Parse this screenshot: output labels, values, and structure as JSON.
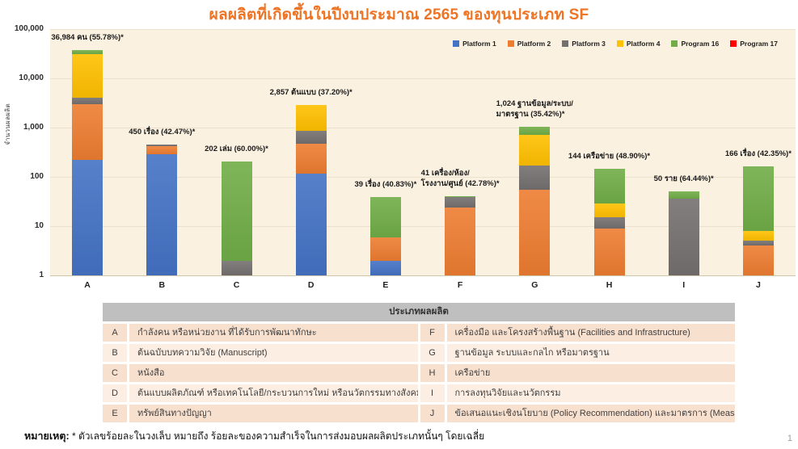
{
  "title": "ผลผลิตที่เกิดขึ้นในปีงบประมาณ 2565 ของทุนประเภท SF",
  "page_number": "1",
  "footnote": {
    "label": "หมายเหตุ:",
    "text": "* ตัวเลขร้อยละในวงเล็บ หมายถึง ร้อยละของความสำเร็จในการส่งมอบผลผลิตประเภทนั้นๆ โดยเฉลี่ย"
  },
  "colors": {
    "title": "#EE7425",
    "plot_bg": "#FAF1E0",
    "gridline": "#EAE0CB",
    "table_header_bg": "#BFBFBF",
    "row_dark": "#F8E0CF",
    "row_light": "#FCEEE3"
  },
  "chart_data": {
    "type": "bar",
    "stacked": true,
    "title": "ผลผลิตที่เกิดขึ้นในปีงบประมาณ 2565 ของทุนประเภท SF",
    "xlabel": "",
    "ylabel": "จำนวนผลผลิต",
    "y_scale": "log",
    "ylim": [
      1,
      100000
    ],
    "yticks": [
      "100,000",
      "10,000",
      "1,000",
      "100",
      "10",
      "1"
    ],
    "grid": true,
    "legend_position": "top-right",
    "categories": [
      "A",
      "B",
      "C",
      "D",
      "E",
      "F",
      "G",
      "H",
      "I",
      "J"
    ],
    "totals": [
      36984,
      450,
      202,
      2857,
      39,
      41,
      1024,
      144,
      50,
      166
    ],
    "series": [
      {
        "name": "Platform 1",
        "color": "#4472C4",
        "values": [
          225,
          290,
          0,
          116,
          2,
          0,
          0,
          0,
          0,
          0
        ]
      },
      {
        "name": "Platform 2",
        "color": "#ED7D31",
        "values": [
          2775,
          130,
          0,
          349,
          4,
          24,
          55,
          9,
          0,
          4
        ]
      },
      {
        "name": "Platform 3",
        "color": "#757070",
        "values": [
          1100,
          30,
          2,
          405,
          0,
          15,
          115,
          6,
          36,
          1
        ]
      },
      {
        "name": "Platform 4",
        "color": "#FFC000",
        "values": [
          26900,
          0,
          0,
          1987,
          0,
          0,
          550,
          14,
          0,
          3
        ]
      },
      {
        "name": "Program 16",
        "color": "#70AD47",
        "values": [
          5984,
          0,
          200,
          0,
          33,
          2,
          304,
          115,
          14,
          158
        ]
      },
      {
        "name": "Program 17",
        "color": "#FF0000",
        "values": [
          0,
          0,
          0,
          0,
          0,
          0,
          0,
          0,
          0,
          0
        ]
      }
    ],
    "bar_labels": [
      [
        "36,984 คน (55.78%)*"
      ],
      [
        "450 เรื่อง (42.47%)*"
      ],
      [
        "202 เล่ม (60.00%)*"
      ],
      [
        "2,857 ต้นแบบ (37.20%)*"
      ],
      [
        "39 เรื่อง (40.83%)*"
      ],
      [
        "41 เครื่อง/ห้อง/",
        "โรงงาน/ศูนย์ (42.78%)*"
      ],
      [
        "1,024 ฐานข้อมูล/ระบบ/",
        "มาตรฐาน (35.42%)*"
      ],
      [
        "144 เครือข่าย (48.90%)*"
      ],
      [
        "50 ราย (64.44%)*"
      ],
      [
        "166 เรื่อง (42.35%)*"
      ]
    ]
  },
  "table": {
    "header": "ประเภทผลผลิต",
    "left_rows": [
      {
        "key": "A",
        "label": "กำลังคน หรือหน่วยงาน ที่ได้รับการพัฒนาทักษะ"
      },
      {
        "key": "B",
        "label": "ต้นฉบับบทความวิจัย  (Manuscript)"
      },
      {
        "key": "C",
        "label": "หนังสือ"
      },
      {
        "key": "D",
        "label": "ต้นแบบผลิตภัณฑ์ หรือเทคโนโลยี/กระบวนการใหม่ หรือนวัตกรรมทางสังคม"
      },
      {
        "key": "E",
        "label": "ทรัพย์สินทางปัญญา"
      }
    ],
    "right_rows": [
      {
        "key": "F",
        "label": "เครื่องมือ และโครงสร้างพื้นฐาน  (Facilities and Infrastructure)"
      },
      {
        "key": "G",
        "label": "ฐานข้อมูล ระบบและกลไก หรือมาตรฐาน"
      },
      {
        "key": "H",
        "label": "เครือข่าย"
      },
      {
        "key": "I",
        "label": "การลงทุนวิจัยและนวัตกรรม"
      },
      {
        "key": "J",
        "label": "ข้อเสนอแนะเชิงนโยบาย (Policy Recommendation) และมาตรการ (Measures)"
      }
    ]
  }
}
